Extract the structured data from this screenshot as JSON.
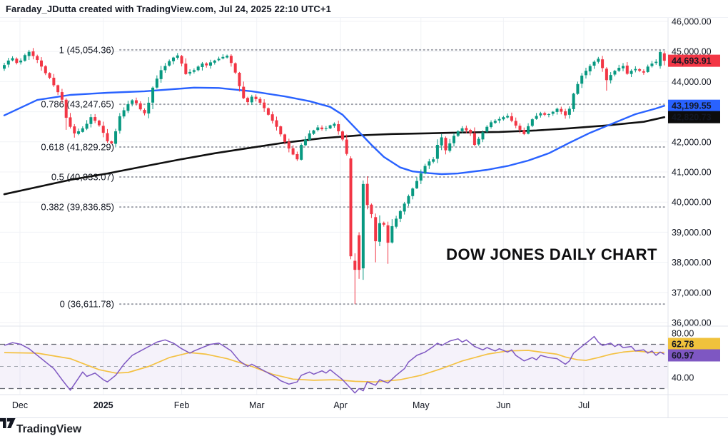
{
  "header": {
    "title": "Faraday_JDutta created with TradingView.com, Jul 24, 2025 22:10 UTC+1"
  },
  "watermark": {
    "text": "DOW JONES DAILY CHART"
  },
  "footer": {
    "logo_text": "TradingView"
  },
  "colors": {
    "background": "#FFFFFF",
    "candle_up": "#089981",
    "candle_down": "#F23645",
    "ma50": "#2962FF",
    "ma200": "#101010",
    "fib_line": "#8D909B",
    "fib_label": "#787B86",
    "grid": "#F0F2F6",
    "separator": "#E0E3EB",
    "rsi_line": "#7E57C2",
    "rsi_ma": "#F4C142",
    "rsi_band_fill": "#7E57C2",
    "rsi_level_line": "#4A4E59",
    "rsi_mid_line": "#9BA0AA",
    "axis_text": "#131722"
  },
  "chart_data": {
    "type": "candlestick",
    "title": "DOW JONES DAILY CHART",
    "timeframe": "Daily",
    "price_axis": {
      "min": 36000,
      "max": 46000,
      "grid_values": [
        46000,
        45000,
        44000,
        43000,
        42000,
        41000,
        40000,
        39000,
        38000,
        37000,
        36000
      ],
      "ticks": [
        {
          "label": "46,000.00",
          "value": 46000
        },
        {
          "label": "45,000.00",
          "value": 45000
        },
        {
          "label": "44,000.00",
          "value": 44000
        },
        {
          "label": "42,000.00",
          "value": 42000
        },
        {
          "label": "41,000.00",
          "value": 41000
        },
        {
          "label": "40,000.00",
          "value": 40000
        },
        {
          "label": "39,000.00",
          "value": 39000
        },
        {
          "label": "38,000.00",
          "value": 38000
        },
        {
          "label": "37,000.00",
          "value": 37000
        },
        {
          "label": "36,000.00",
          "value": 36000
        }
      ],
      "badges": [
        {
          "name": "last-price-badge",
          "label": "44,693.91",
          "value": 44693.91,
          "bg": "#F23645",
          "fg": "#FFFFFF"
        },
        {
          "name": "ma50-price-badge",
          "label": "43,199.55",
          "value": 43199.55,
          "bg": "#2962FF",
          "fg": "#FFFFFF"
        },
        {
          "name": "ma200-price-badge",
          "label": "42,820.73",
          "value": 42820.73,
          "bg": "#0C0C0C",
          "fg": "#FFFFFF"
        }
      ]
    },
    "time_axis": {
      "labels": [
        {
          "text": "Dec",
          "d": 3.8,
          "bold": false
        },
        {
          "text": "2025",
          "d": 24,
          "bold": true
        },
        {
          "text": "Feb",
          "d": 43,
          "bold": false
        },
        {
          "text": "Mar",
          "d": 61.2,
          "bold": false
        },
        {
          "text": "Apr",
          "d": 81.5,
          "bold": false
        },
        {
          "text": "May",
          "d": 101,
          "bold": false
        },
        {
          "text": "Jun",
          "d": 121,
          "bold": false
        },
        {
          "text": "Jul",
          "d": 140.5,
          "bold": false
        }
      ]
    },
    "fib_levels": [
      {
        "label": "1 (45,054.36)",
        "level": 1,
        "price": 45054.36
      },
      {
        "label": "0.786 (43,247.65)",
        "level": 0.786,
        "price": 43247.65
      },
      {
        "label": "0.618 (41,829.29)",
        "level": 0.618,
        "price": 41829.29
      },
      {
        "label": "0.5 (40,833.07)",
        "level": 0.5,
        "price": 40833.07
      },
      {
        "label": "0.382 (39,836.85)",
        "level": 0.382,
        "price": 39836.85
      },
      {
        "label": "0 (36,611.78)",
        "level": 0,
        "price": 36611.78
      }
    ],
    "candles": {
      "last_close": 44693.91,
      "closes": [
        44550,
        44700,
        44780,
        44620,
        44700,
        44880,
        44990,
        44850,
        44720,
        44500,
        44280,
        44130,
        43880,
        43650,
        43400,
        42800,
        42500,
        42280,
        42350,
        42450,
        42600,
        42820,
        42700,
        42550,
        42300,
        42020,
        41950,
        42350,
        42850,
        43050,
        43250,
        43380,
        43280,
        43080,
        42950,
        43300,
        43800,
        44100,
        44380,
        44520,
        44680,
        44800,
        44870,
        44600,
        44250,
        44320,
        44380,
        44500,
        44600,
        44540,
        44640,
        44700,
        44760,
        44820,
        44860,
        44620,
        44300,
        43850,
        43450,
        43320,
        43500,
        43420,
        43300,
        43120,
        42900,
        42700,
        42500,
        42250,
        42000,
        41780,
        41580,
        41420,
        41900,
        42080,
        42280,
        42380,
        42480,
        42420,
        42450,
        42550,
        42600,
        42350,
        42080,
        41600,
        38200,
        37750,
        37750,
        40600,
        39900,
        39600,
        38700,
        39300,
        39250,
        38650,
        39200,
        39450,
        39700,
        39950,
        40200,
        40450,
        40700,
        40950,
        41200,
        41350,
        41420,
        41900,
        42150,
        41720,
        41950,
        42200,
        42350,
        42450,
        42380,
        42300,
        41900,
        42100,
        42320,
        42500,
        42650,
        42700,
        42760,
        42820,
        42860,
        42700,
        42540,
        42400,
        42260,
        42520,
        42750,
        42860,
        42950,
        42900,
        42920,
        43000,
        43100,
        43000,
        42880,
        43100,
        43600,
        43920,
        44200,
        44360,
        44520,
        44660,
        44760,
        44450,
        44050,
        44220,
        44360,
        44460,
        44520,
        44260,
        44360,
        44420,
        44360,
        44300,
        44500,
        44600,
        44660,
        44980,
        44693.91
      ],
      "overrides": {
        "6": [
          44850,
          45054.36,
          44720,
          44990
        ],
        "15": [
          43400,
          43450,
          42400,
          42800
        ],
        "84": [
          41450,
          41520,
          38100,
          38200
        ],
        "85": [
          38050,
          38300,
          36611.78,
          37750
        ],
        "86": [
          38900,
          39000,
          37450,
          37750
        ],
        "87": [
          37800,
          40720,
          37420,
          40600
        ],
        "90": [
          39500,
          39620,
          38000,
          38700
        ],
        "93": [
          39230,
          39350,
          37950,
          38650
        ],
        "146": [
          44430,
          44480,
          43700,
          44050
        ],
        "159": [
          44520,
          45050,
          44430,
          44980
        ],
        "160": [
          44940,
          45010,
          44540,
          44693.91
        ]
      }
    },
    "ma50": {
      "name": "MA 50 (blue)",
      "last_value": 43199.55,
      "points": [
        [
          0,
          42880
        ],
        [
          8,
          43390
        ],
        [
          16,
          43560
        ],
        [
          25,
          43630
        ],
        [
          34,
          43680
        ],
        [
          42,
          43760
        ],
        [
          46,
          43800
        ],
        [
          52,
          43790
        ],
        [
          60,
          43680
        ],
        [
          68,
          43510
        ],
        [
          74,
          43350
        ],
        [
          79,
          43160
        ],
        [
          82,
          42900
        ],
        [
          86,
          42330
        ],
        [
          89,
          41900
        ],
        [
          92,
          41500
        ],
        [
          96,
          41150
        ],
        [
          99,
          41020
        ],
        [
          103,
          40960
        ],
        [
          106,
          40930
        ],
        [
          110,
          40950
        ],
        [
          117,
          41070
        ],
        [
          122,
          41200
        ],
        [
          127,
          41380
        ],
        [
          132,
          41620
        ],
        [
          137,
          41970
        ],
        [
          142,
          42300
        ],
        [
          148,
          42640
        ],
        [
          153,
          42920
        ],
        [
          158,
          43110
        ],
        [
          160,
          43199.55
        ]
      ]
    },
    "ma200": {
      "name": "MA 200 (black)",
      "last_value": 42820.73,
      "points": [
        [
          0,
          40260
        ],
        [
          8,
          40500
        ],
        [
          16,
          40740
        ],
        [
          25,
          40950
        ],
        [
          34,
          41190
        ],
        [
          42,
          41400
        ],
        [
          51,
          41620
        ],
        [
          60,
          41810
        ],
        [
          68,
          41975
        ],
        [
          77,
          42120
        ],
        [
          86,
          42215
        ],
        [
          94,
          42260
        ],
        [
          103,
          42285
        ],
        [
          111,
          42310
        ],
        [
          120,
          42330
        ],
        [
          129,
          42380
        ],
        [
          137,
          42450
        ],
        [
          146,
          42545
        ],
        [
          155,
          42665
        ],
        [
          160,
          42820.73
        ]
      ]
    },
    "rsi": {
      "scale_ticks": [
        {
          "label": "80.00",
          "value": 80
        },
        {
          "label": "40.00",
          "value": 40
        }
      ],
      "levels": [
        70,
        50,
        30
      ],
      "band": [
        30,
        70
      ],
      "badges": [
        {
          "name": "rsi-ma-badge",
          "label": "62.78",
          "value": 62.78,
          "bg": "#F0C23C",
          "fg": "#111111"
        },
        {
          "name": "rsi-badge",
          "label": "60.97",
          "value": 60.97,
          "bg": "#7E57C2",
          "fg": "#FFFFFF"
        }
      ],
      "rsi_points": [
        [
          0,
          69
        ],
        [
          2,
          71.5
        ],
        [
          4,
          70
        ],
        [
          6,
          66
        ],
        [
          9,
          57
        ],
        [
          12,
          48
        ],
        [
          14,
          38
        ],
        [
          16,
          28.5
        ],
        [
          17,
          34
        ],
        [
          19,
          45
        ],
        [
          20,
          41
        ],
        [
          22,
          44
        ],
        [
          24,
          38
        ],
        [
          25,
          36
        ],
        [
          27,
          42
        ],
        [
          29,
          52
        ],
        [
          31,
          60
        ],
        [
          33,
          64
        ],
        [
          35,
          68
        ],
        [
          37,
          72
        ],
        [
          39,
          74
        ],
        [
          41,
          71
        ],
        [
          43,
          66
        ],
        [
          45,
          62
        ],
        [
          46,
          64
        ],
        [
          48,
          67
        ],
        [
          50,
          70
        ],
        [
          52,
          71
        ],
        [
          53,
          69
        ],
        [
          55,
          64
        ],
        [
          57,
          55
        ],
        [
          59,
          50
        ],
        [
          60,
          52
        ],
        [
          62,
          48
        ],
        [
          64,
          44
        ],
        [
          66,
          40
        ],
        [
          67,
          37
        ],
        [
          69,
          34
        ],
        [
          71,
          36
        ],
        [
          72,
          42
        ],
        [
          74,
          45
        ],
        [
          75,
          43
        ],
        [
          77,
          46
        ],
        [
          78,
          44
        ],
        [
          79,
          47
        ],
        [
          80,
          44
        ],
        [
          82,
          38
        ],
        [
          84,
          30
        ],
        [
          85,
          26
        ],
        [
          86,
          30
        ],
        [
          87,
          28
        ],
        [
          88,
          36
        ],
        [
          90,
          33
        ],
        [
          91,
          38
        ],
        [
          93,
          35
        ],
        [
          95,
          42
        ],
        [
          97,
          48
        ],
        [
          98,
          54
        ],
        [
          100,
          60
        ],
        [
          102,
          63
        ],
        [
          104,
          68
        ],
        [
          105,
          71
        ],
        [
          106,
          69
        ],
        [
          108,
          73
        ],
        [
          110,
          75
        ],
        [
          111,
          72
        ],
        [
          112,
          74
        ],
        [
          114,
          68
        ],
        [
          116,
          65
        ],
        [
          117,
          67
        ],
        [
          119,
          64
        ],
        [
          120,
          66
        ],
        [
          122,
          63
        ],
        [
          123,
          65
        ],
        [
          124,
          60
        ],
        [
          126,
          55
        ],
        [
          128,
          58
        ],
        [
          129,
          56
        ],
        [
          130,
          60
        ],
        [
          132,
          58
        ],
        [
          134,
          57
        ],
        [
          136,
          52
        ],
        [
          137,
          55
        ],
        [
          138,
          62
        ],
        [
          140,
          68
        ],
        [
          142,
          74
        ],
        [
          143,
          77
        ],
        [
          144,
          72
        ],
        [
          145,
          69
        ],
        [
          147,
          71
        ],
        [
          148,
          68
        ],
        [
          149,
          70
        ],
        [
          150,
          67
        ],
        [
          152,
          68
        ],
        [
          153,
          64
        ],
        [
          155,
          65
        ],
        [
          156,
          62
        ],
        [
          157,
          64
        ],
        [
          158,
          60
        ],
        [
          159,
          63
        ],
        [
          160,
          60.97
        ]
      ],
      "rsi_ma_points": [
        [
          0,
          62.5
        ],
        [
          8,
          62
        ],
        [
          16,
          57
        ],
        [
          23,
          47
        ],
        [
          27,
          44
        ],
        [
          30,
          44.5
        ],
        [
          35,
          50
        ],
        [
          40,
          58
        ],
        [
          45,
          62.5
        ],
        [
          49,
          61
        ],
        [
          54,
          57
        ],
        [
          60,
          50
        ],
        [
          65,
          43
        ],
        [
          70,
          38.5
        ],
        [
          75,
          37.5
        ],
        [
          80,
          38
        ],
        [
          85,
          36.5
        ],
        [
          90,
          36
        ],
        [
          96,
          38
        ],
        [
          101,
          42
        ],
        [
          106,
          48
        ],
        [
          111,
          55
        ],
        [
          117,
          61
        ],
        [
          122,
          64
        ],
        [
          127,
          64.5
        ],
        [
          130,
          63
        ],
        [
          134,
          61
        ],
        [
          136,
          58.5
        ],
        [
          139,
          56
        ],
        [
          141,
          55.5
        ],
        [
          144,
          58
        ],
        [
          147,
          61
        ],
        [
          150,
          63
        ],
        [
          153,
          64
        ],
        [
          156,
          63
        ],
        [
          158,
          62.5
        ],
        [
          160,
          62.78
        ]
      ]
    }
  }
}
